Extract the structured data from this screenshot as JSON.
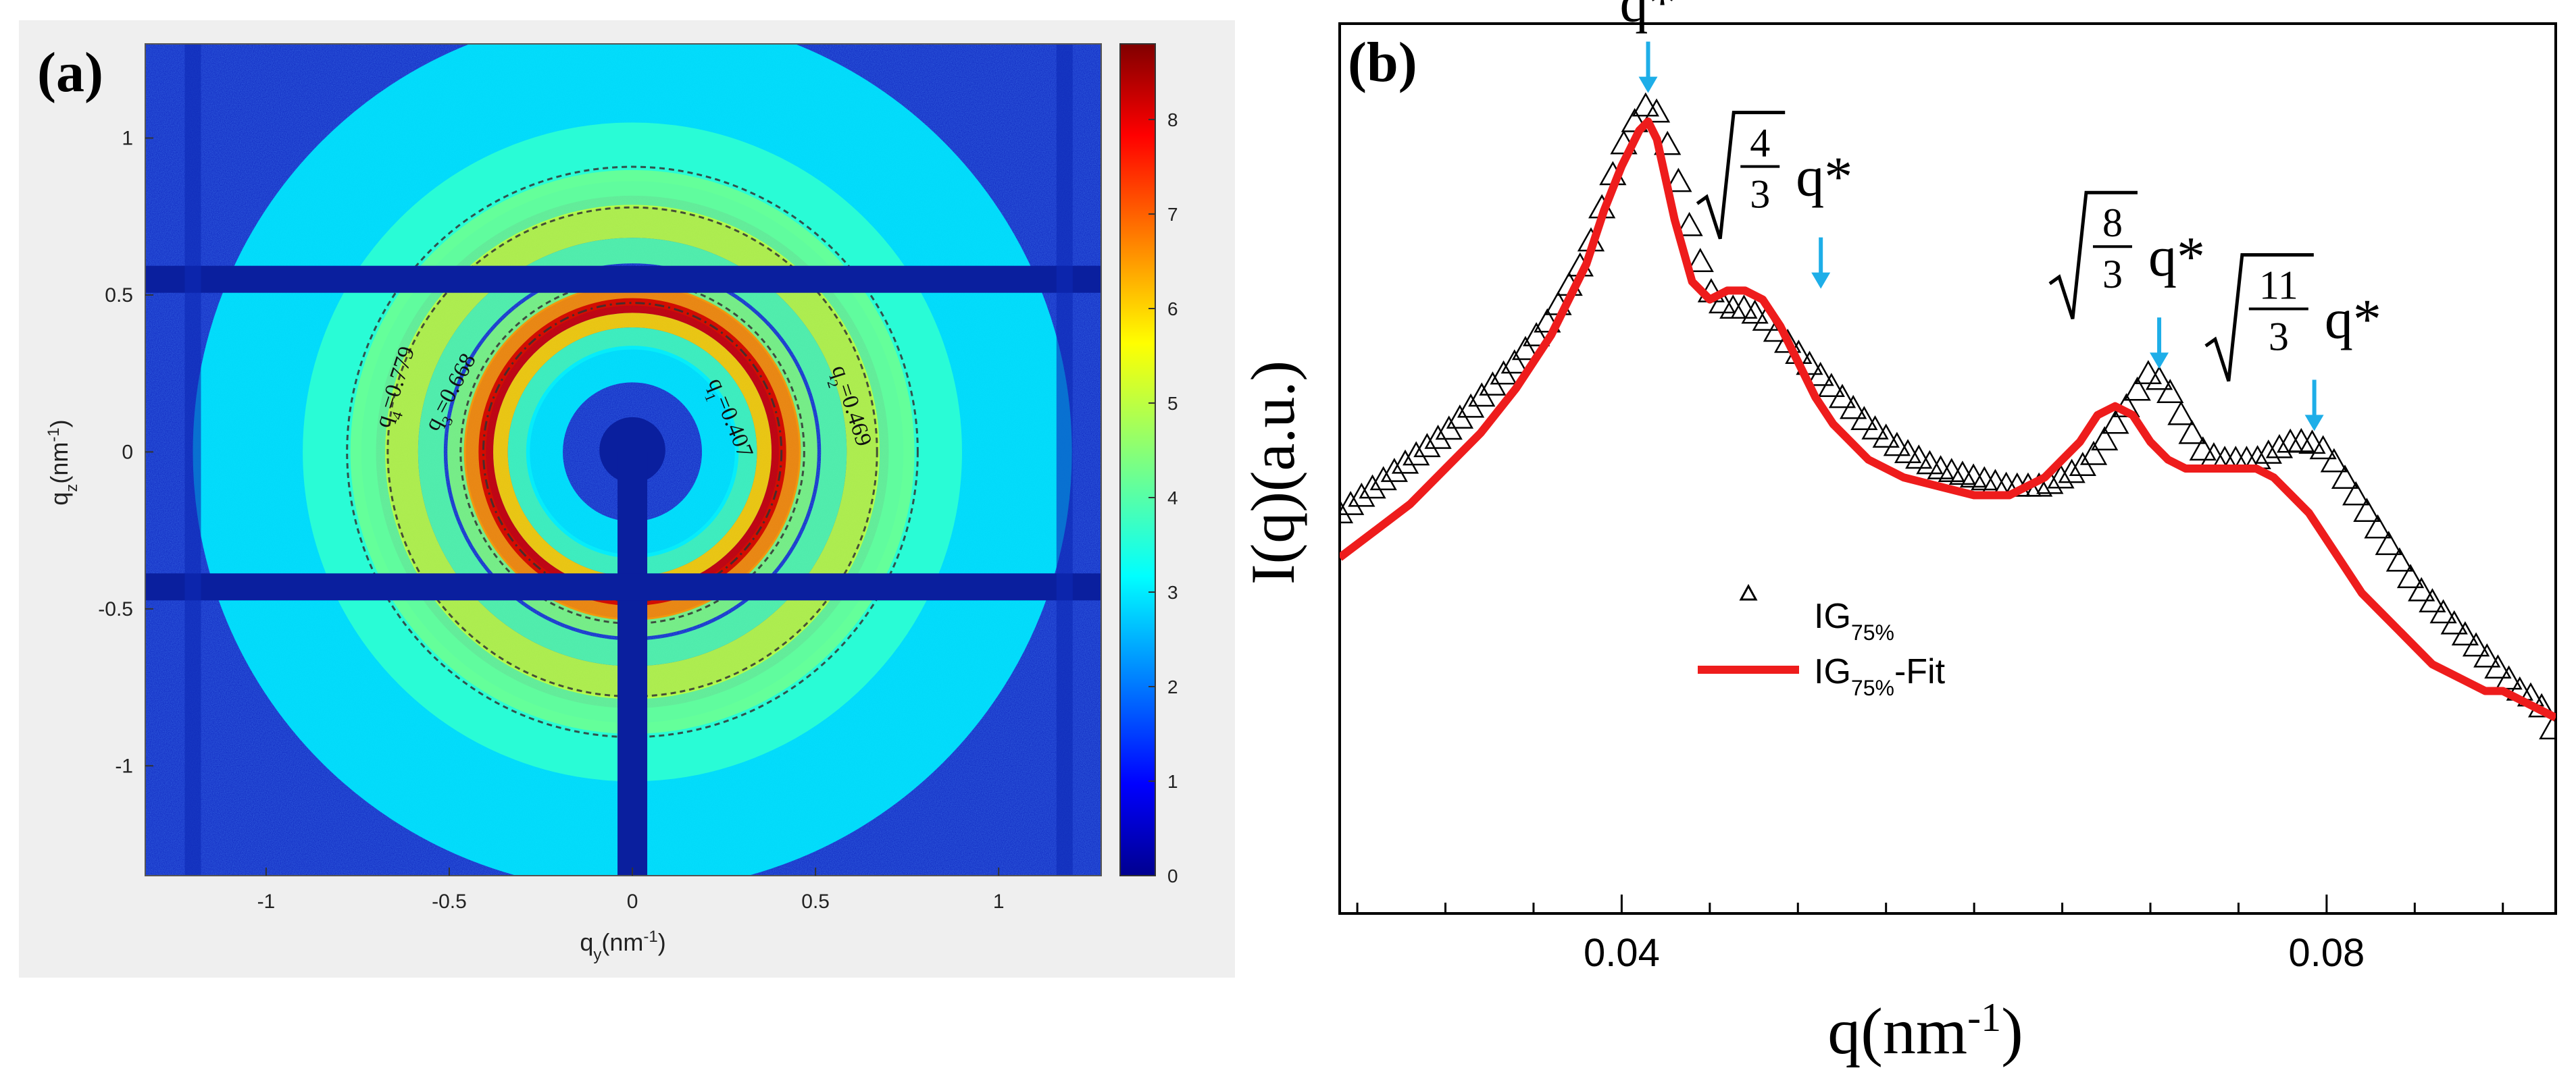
{
  "panel_a": {
    "label": "(a)",
    "xlabel_base": "q",
    "xlabel_sub": "y",
    "xlabel_unit": "(nm",
    "xlabel_exp": "-1",
    "xlabel_close": ")",
    "ylabel_base": "q",
    "ylabel_sub": "z",
    "ylabel_unit": "(nm",
    "ylabel_exp": "-1",
    "ylabel_close": ")",
    "xticks": [
      "-1",
      "-0.5",
      "0",
      "0.5",
      "1"
    ],
    "yticks": [
      "1",
      "0.5",
      "0",
      "-0.5",
      "-1"
    ],
    "colorbar_ticks": [
      "8",
      "7",
      "6",
      "5",
      "4",
      "3",
      "2",
      "1",
      "0"
    ],
    "ring_labels": [
      {
        "sym": "q",
        "sub": "4",
        "val": "=0.779"
      },
      {
        "sym": "q",
        "sub": "3",
        "val": "=0.668"
      },
      {
        "sym": "q",
        "sub": "1",
        "val": "=0.407"
      },
      {
        "sym": "q",
        "sub": "2",
        "val": "=0.469"
      }
    ]
  },
  "panel_b": {
    "label": "(b)",
    "xlabel_base": "q(nm",
    "xlabel_exp": "-1",
    "xlabel_close": ")",
    "ylabel": "I(q)(a.u.)",
    "xticks": [
      "0.04",
      "0.08"
    ],
    "peaks": [
      {
        "label": "q*"
      },
      {
        "label": "q*",
        "num": "4",
        "den": "3"
      },
      {
        "label": "q*",
        "num": "8",
        "den": "3"
      },
      {
        "label": "q*",
        "num": "11",
        "den": "3"
      }
    ],
    "legend": [
      {
        "base": "IG",
        "sub": "75%",
        "suffix": ""
      },
      {
        "base": "IG",
        "sub": "75%",
        "suffix": "-Fit"
      }
    ]
  },
  "colors": {
    "data_marker": "#000000",
    "fit_line": "#ee1c1c",
    "peak_arrow": "#1eaee8",
    "colormap_low": "#00008f",
    "colormap_high": "#800000"
  },
  "chart_data": [
    {
      "type": "heatmap",
      "title": "",
      "xlabel": "q_y(nm^-1)",
      "ylabel": "q_z(nm^-1)",
      "xlim": [
        -1.33,
        1.28
      ],
      "ylim": [
        -1.35,
        1.3
      ],
      "colorbar_range": [
        0,
        8.8
      ],
      "rings": [
        {
          "name": "q1",
          "q": 0.407,
          "style": "dash-dot",
          "intensity": 8.0
        },
        {
          "name": "q2",
          "q": 0.469,
          "style": "dashed",
          "intensity": 4.5
        },
        {
          "name": "q3",
          "q": 0.668,
          "style": "dashed",
          "intensity": 5.0
        },
        {
          "name": "q4",
          "q": 0.779,
          "style": "dashed",
          "intensity": 4.0
        }
      ],
      "beamstop": {
        "center": [
          0,
          0
        ],
        "radius": 0.09
      },
      "detector_gaps": {
        "horizontal_q_z": [
          0.55,
          -0.43
        ],
        "vertical_q_y": [
          -1.2,
          1.18
        ]
      }
    },
    {
      "type": "scatter",
      "title": "",
      "xlabel": "q(nm^-1)",
      "ylabel": "I(q)(a.u.)",
      "xlim": [
        0.024,
        0.093
      ],
      "ylim": [
        0,
        1
      ],
      "series": [
        {
          "name": "IG75%",
          "marker": "triangle",
          "x": [
            0.024,
            0.026,
            0.028,
            0.03,
            0.032,
            0.034,
            0.036,
            0.038,
            0.039,
            0.04,
            0.041,
            0.0415,
            0.042,
            0.043,
            0.044,
            0.045,
            0.046,
            0.047,
            0.048,
            0.049,
            0.05,
            0.051,
            0.052,
            0.054,
            0.056,
            0.058,
            0.06,
            0.062,
            0.064,
            0.065,
            0.066,
            0.067,
            0.068,
            0.069,
            0.07,
            0.071,
            0.072,
            0.073,
            0.074,
            0.075,
            0.076,
            0.077,
            0.078,
            0.079,
            0.08,
            0.081,
            0.082,
            0.083,
            0.084,
            0.085,
            0.086,
            0.087,
            0.088,
            0.089,
            0.09,
            0.091,
            0.092,
            0.093
          ],
          "y": [
            0.45,
            0.48,
            0.51,
            0.54,
            0.58,
            0.62,
            0.67,
            0.74,
            0.8,
            0.86,
            0.9,
            0.91,
            0.9,
            0.84,
            0.76,
            0.7,
            0.68,
            0.68,
            0.67,
            0.65,
            0.63,
            0.61,
            0.59,
            0.55,
            0.52,
            0.5,
            0.49,
            0.48,
            0.48,
            0.49,
            0.5,
            0.52,
            0.55,
            0.58,
            0.61,
            0.59,
            0.55,
            0.52,
            0.51,
            0.51,
            0.51,
            0.52,
            0.53,
            0.53,
            0.52,
            0.49,
            0.46,
            0.43,
            0.4,
            0.37,
            0.35,
            0.33,
            0.31,
            0.29,
            0.27,
            0.25,
            0.24,
            0.2
          ]
        },
        {
          "name": "IG75%-Fit",
          "marker": "line",
          "x": [
            0.024,
            0.026,
            0.028,
            0.03,
            0.032,
            0.034,
            0.036,
            0.038,
            0.039,
            0.04,
            0.041,
            0.0415,
            0.042,
            0.043,
            0.044,
            0.045,
            0.046,
            0.047,
            0.048,
            0.049,
            0.05,
            0.051,
            0.052,
            0.054,
            0.056,
            0.058,
            0.06,
            0.062,
            0.064,
            0.065,
            0.066,
            0.067,
            0.068,
            0.069,
            0.07,
            0.071,
            0.072,
            0.073,
            0.074,
            0.075,
            0.076,
            0.077,
            0.078,
            0.079,
            0.08,
            0.081,
            0.082,
            0.083,
            0.084,
            0.085,
            0.086,
            0.087,
            0.088,
            0.089,
            0.09,
            0.091,
            0.092,
            0.093
          ],
          "y": [
            0.4,
            0.43,
            0.46,
            0.5,
            0.54,
            0.59,
            0.65,
            0.73,
            0.79,
            0.84,
            0.88,
            0.89,
            0.87,
            0.78,
            0.71,
            0.69,
            0.7,
            0.7,
            0.69,
            0.66,
            0.62,
            0.58,
            0.55,
            0.51,
            0.49,
            0.48,
            0.47,
            0.47,
            0.49,
            0.51,
            0.53,
            0.56,
            0.57,
            0.56,
            0.53,
            0.51,
            0.5,
            0.5,
            0.5,
            0.5,
            0.5,
            0.49,
            0.47,
            0.45,
            0.42,
            0.39,
            0.36,
            0.34,
            0.32,
            0.3,
            0.28,
            0.27,
            0.26,
            0.25,
            0.25,
            0.24,
            0.23,
            0.22
          ]
        }
      ],
      "annotations": [
        {
          "text": "q*",
          "x": 0.0415
        },
        {
          "text": "sqrt(4/3) q*",
          "x": 0.05
        },
        {
          "text": "sqrt(8/3) q*",
          "x": 0.07
        },
        {
          "text": "sqrt(11/3) q*",
          "x": 0.079
        }
      ]
    }
  ]
}
